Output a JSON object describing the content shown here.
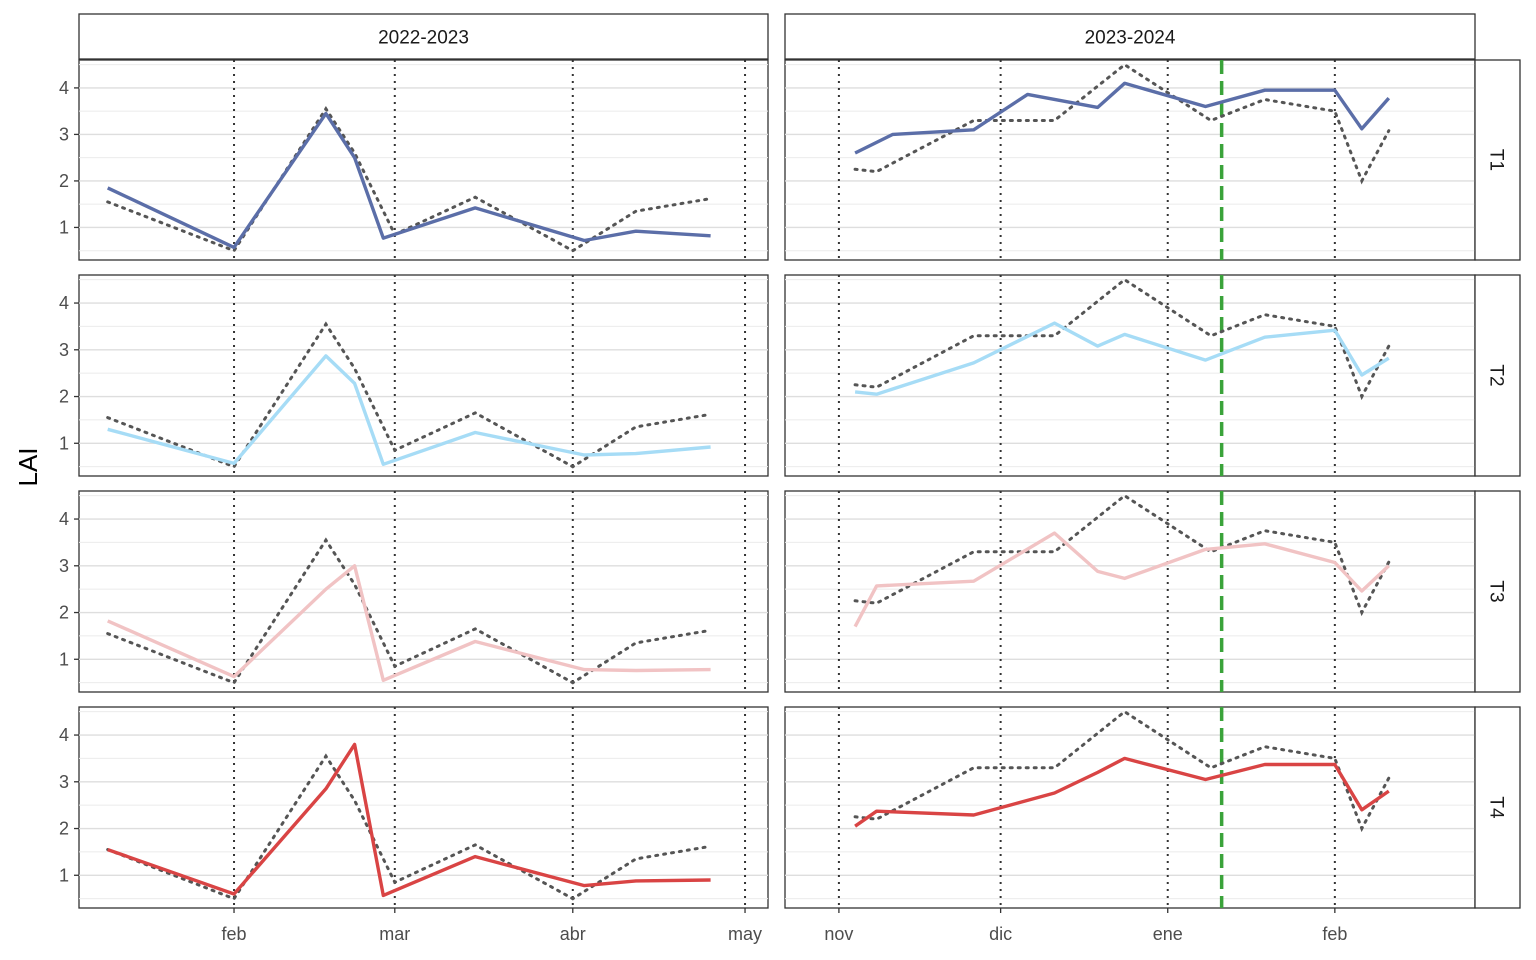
{
  "chart_data": {
    "type": "line",
    "title": "",
    "xlabel": "",
    "ylabel": "LAI",
    "ylim": [
      0.3,
      4.6
    ],
    "yticks": [
      1,
      2,
      3,
      4
    ],
    "grid": true,
    "colors": {
      "observed": "#555555",
      "T1": "#5b6ea8",
      "T2": "#a6dcf6",
      "T3": "#f1c3c4",
      "T4": "#d94444",
      "marker": "#3aa33a"
    },
    "columns": [
      {
        "label": "2022-2023",
        "xlim": [
          "2023-01-05",
          "2023-05-05"
        ],
        "month_ticks": [
          {
            "label": "feb",
            "date": "2023-02-01"
          },
          {
            "label": "mar",
            "date": "2023-03-01"
          },
          {
            "label": "abr",
            "date": "2023-04-01"
          },
          {
            "label": "may",
            "date": "2023-05-01"
          }
        ],
        "observed": {
          "x": [
            "2023-01-10",
            "2023-02-01",
            "2023-02-17",
            "2023-02-22",
            "2023-03-01",
            "2023-03-15",
            "2023-04-01",
            "2023-04-12",
            "2023-04-25"
          ],
          "y": [
            1.55,
            0.5,
            3.55,
            2.6,
            0.85,
            1.65,
            0.5,
            1.35,
            1.62
          ]
        },
        "series": [
          {
            "row": "T1",
            "x": [
              "2023-01-10",
              "2023-02-01",
              "2023-02-17",
              "2023-02-22",
              "2023-02-27",
              "2023-03-15",
              "2023-04-03",
              "2023-04-12",
              "2023-04-25"
            ],
            "y": [
              1.85,
              0.57,
              3.45,
              2.5,
              0.77,
              1.42,
              0.72,
              0.92,
              0.82
            ]
          },
          {
            "row": "T2",
            "x": [
              "2023-01-10",
              "2023-02-01",
              "2023-02-17",
              "2023-02-22",
              "2023-02-27",
              "2023-03-15",
              "2023-04-03",
              "2023-04-12",
              "2023-04-25"
            ],
            "y": [
              1.3,
              0.57,
              2.87,
              2.28,
              0.55,
              1.23,
              0.75,
              0.78,
              0.92
            ]
          },
          {
            "row": "T3",
            "x": [
              "2023-01-10",
              "2023-02-01",
              "2023-02-17",
              "2023-02-22",
              "2023-02-27",
              "2023-03-15",
              "2023-04-03",
              "2023-04-12",
              "2023-04-25"
            ],
            "y": [
              1.82,
              0.63,
              2.5,
              3.0,
              0.55,
              1.38,
              0.78,
              0.76,
              0.78
            ]
          },
          {
            "row": "T4",
            "x": [
              "2023-01-10",
              "2023-02-01",
              "2023-02-17",
              "2023-02-22",
              "2023-02-27",
              "2023-03-15",
              "2023-04-03",
              "2023-04-12",
              "2023-04-25"
            ],
            "y": [
              1.55,
              0.6,
              2.85,
              3.8,
              0.57,
              1.4,
              0.78,
              0.88,
              0.9
            ]
          }
        ]
      },
      {
        "label": "2023-2024",
        "xlim": [
          "2023-10-22",
          "2024-02-27"
        ],
        "month_ticks": [
          {
            "label": "nov",
            "date": "2023-11-01"
          },
          {
            "label": "dic",
            "date": "2023-12-01"
          },
          {
            "label": "ene",
            "date": "2024-01-01"
          },
          {
            "label": "feb",
            "date": "2024-02-01"
          }
        ],
        "marker_date": "2024-01-11",
        "observed": {
          "x": [
            "2023-11-04",
            "2023-11-08",
            "2023-11-26",
            "2023-12-11",
            "2023-12-24",
            "2024-01-09",
            "2024-01-19",
            "2024-02-01",
            "2024-02-06",
            "2024-02-11"
          ],
          "y": [
            2.25,
            2.2,
            3.3,
            3.3,
            4.5,
            3.3,
            3.75,
            3.5,
            2.0,
            3.08
          ]
        },
        "series": [
          {
            "row": "T1",
            "x": [
              "2023-11-04",
              "2023-11-11",
              "2023-11-26",
              "2023-12-06",
              "2023-12-19",
              "2023-12-24",
              "2024-01-08",
              "2024-01-19",
              "2024-02-01",
              "2024-02-06",
              "2024-02-11"
            ],
            "y": [
              2.6,
              3.0,
              3.1,
              3.86,
              3.58,
              4.1,
              3.6,
              3.95,
              3.95,
              3.12,
              3.78
            ]
          },
          {
            "row": "T2",
            "x": [
              "2023-11-04",
              "2023-11-08",
              "2023-11-26",
              "2023-12-11",
              "2023-12-19",
              "2023-12-24",
              "2024-01-08",
              "2024-01-19",
              "2024-02-01",
              "2024-02-06",
              "2024-02-11"
            ],
            "y": [
              2.1,
              2.05,
              2.72,
              3.57,
              3.08,
              3.33,
              2.78,
              3.27,
              3.42,
              2.46,
              2.82
            ]
          },
          {
            "row": "T3",
            "x": [
              "2023-11-04",
              "2023-11-08",
              "2023-11-26",
              "2023-12-11",
              "2023-12-19",
              "2023-12-24",
              "2024-01-08",
              "2024-01-19",
              "2024-02-01",
              "2024-02-06",
              "2024-02-11"
            ],
            "y": [
              1.7,
              2.57,
              2.67,
              3.7,
              2.88,
              2.73,
              3.35,
              3.47,
              3.07,
              2.46,
              3.0
            ]
          },
          {
            "row": "T4",
            "x": [
              "2023-11-04",
              "2023-11-08",
              "2023-11-26",
              "2023-12-11",
              "2023-12-19",
              "2023-12-24",
              "2024-01-08",
              "2024-01-19",
              "2024-02-01",
              "2024-02-06",
              "2024-02-11"
            ],
            "y": [
              2.05,
              2.37,
              2.29,
              2.76,
              3.2,
              3.5,
              3.05,
              3.37,
              3.37,
              2.4,
              2.8
            ]
          }
        ]
      }
    ],
    "rows": [
      "T1",
      "T2",
      "T3",
      "T4"
    ]
  }
}
